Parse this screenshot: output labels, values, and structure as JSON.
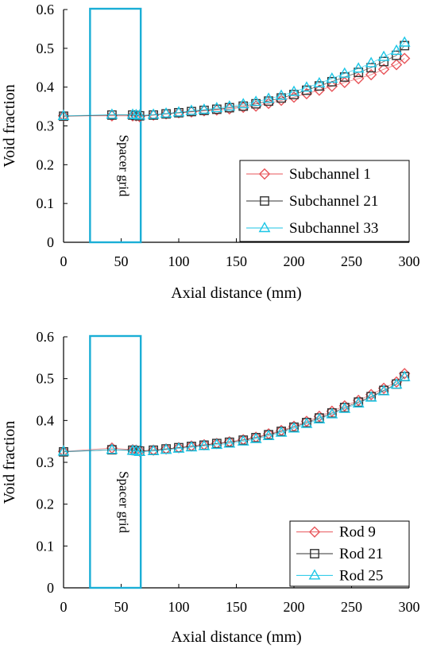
{
  "chart_data": [
    {
      "type": "scatter",
      "xlabel": "Axial distance (mm)",
      "ylabel": "Void fraction",
      "xlim": [
        0,
        300
      ],
      "ylim": [
        0,
        0.6
      ],
      "xticks": [
        "0",
        "50",
        "100",
        "150",
        "200",
        "250",
        "300"
      ],
      "yticks": [
        "0",
        "0.1",
        "0.2",
        "0.3",
        "0.4",
        "0.5",
        "0.6"
      ],
      "annotation": {
        "text": "Spacer grid",
        "x_range": [
          23,
          67
        ],
        "color": "#1aaed6"
      },
      "legend_position": "bottom-right",
      "series": [
        {
          "name": "Subchannel 1",
          "marker": "diamond",
          "color": "#e8555a",
          "x": [
            0,
            42,
            60,
            63,
            66,
            78,
            89,
            100,
            111,
            122,
            133,
            144,
            156,
            167,
            178,
            189,
            200,
            211,
            222,
            233,
            244,
            256,
            267,
            278,
            289,
            296
          ],
          "y": [
            0.326,
            0.326,
            0.326,
            0.326,
            0.324,
            0.328,
            0.331,
            0.334,
            0.336,
            0.339,
            0.341,
            0.344,
            0.348,
            0.351,
            0.358,
            0.366,
            0.374,
            0.383,
            0.392,
            0.402,
            0.412,
            0.422,
            0.432,
            0.446,
            0.458,
            0.474
          ]
        },
        {
          "name": "Subchannel 21",
          "marker": "square",
          "color": "#333333",
          "x": [
            0,
            42,
            60,
            63,
            66,
            78,
            89,
            100,
            111,
            122,
            133,
            144,
            156,
            167,
            178,
            189,
            200,
            211,
            222,
            233,
            244,
            256,
            267,
            278,
            289,
            296
          ],
          "y": [
            0.325,
            0.328,
            0.328,
            0.327,
            0.326,
            0.328,
            0.331,
            0.334,
            0.337,
            0.34,
            0.343,
            0.347,
            0.351,
            0.357,
            0.364,
            0.372,
            0.381,
            0.392,
            0.403,
            0.414,
            0.426,
            0.438,
            0.45,
            0.466,
            0.482,
            0.507
          ]
        },
        {
          "name": "Subchannel 33",
          "marker": "triangle",
          "color": "#1cc6e6",
          "x": [
            0,
            42,
            60,
            63,
            66,
            78,
            89,
            100,
            111,
            122,
            133,
            144,
            156,
            167,
            178,
            189,
            200,
            211,
            222,
            233,
            244,
            256,
            267,
            278,
            289,
            296
          ],
          "y": [
            0.326,
            0.329,
            0.329,
            0.328,
            0.327,
            0.329,
            0.332,
            0.335,
            0.339,
            0.342,
            0.346,
            0.35,
            0.356,
            0.362,
            0.37,
            0.378,
            0.388,
            0.399,
            0.41,
            0.422,
            0.435,
            0.448,
            0.462,
            0.478,
            0.494,
            0.515
          ]
        }
      ]
    },
    {
      "type": "scatter",
      "xlabel": "Axial distance (mm)",
      "ylabel": "Void fraction",
      "xlim": [
        0,
        300
      ],
      "ylim": [
        0,
        0.6
      ],
      "xticks": [
        "0",
        "50",
        "100",
        "150",
        "200",
        "250",
        "300"
      ],
      "yticks": [
        "0",
        "0.1",
        "0.2",
        "0.3",
        "0.4",
        "0.5",
        "0.6"
      ],
      "annotation": {
        "text": "Spacer grid",
        "x_range": [
          23,
          67
        ],
        "color": "#1aaed6"
      },
      "legend_position": "bottom-right",
      "series": [
        {
          "name": "Rod 9",
          "marker": "diamond",
          "color": "#e8555a",
          "x": [
            0,
            42,
            60,
            63,
            66,
            78,
            89,
            100,
            111,
            122,
            133,
            144,
            156,
            167,
            178,
            189,
            200,
            211,
            222,
            233,
            244,
            256,
            267,
            278,
            289,
            296
          ],
          "y": [
            0.326,
            0.334,
            0.33,
            0.329,
            0.327,
            0.329,
            0.332,
            0.335,
            0.339,
            0.342,
            0.345,
            0.349,
            0.354,
            0.36,
            0.368,
            0.376,
            0.386,
            0.398,
            0.41,
            0.422,
            0.435,
            0.448,
            0.462,
            0.477,
            0.492,
            0.512
          ]
        },
        {
          "name": "Rod 21",
          "marker": "square",
          "color": "#333333",
          "x": [
            0,
            42,
            60,
            63,
            66,
            78,
            89,
            100,
            111,
            122,
            133,
            144,
            156,
            167,
            178,
            189,
            200,
            211,
            222,
            233,
            244,
            256,
            267,
            278,
            289,
            296
          ],
          "y": [
            0.325,
            0.33,
            0.329,
            0.328,
            0.327,
            0.329,
            0.332,
            0.335,
            0.338,
            0.341,
            0.345,
            0.348,
            0.353,
            0.359,
            0.366,
            0.374,
            0.384,
            0.395,
            0.406,
            0.418,
            0.431,
            0.444,
            0.457,
            0.472,
            0.487,
            0.505
          ]
        },
        {
          "name": "Rod 25",
          "marker": "triangle",
          "color": "#1cc6e6",
          "x": [
            0,
            42,
            60,
            63,
            66,
            78,
            89,
            100,
            111,
            122,
            133,
            144,
            156,
            167,
            178,
            189,
            200,
            211,
            222,
            233,
            244,
            256,
            267,
            278,
            289,
            296
          ],
          "y": [
            0.326,
            0.33,
            0.328,
            0.327,
            0.325,
            0.327,
            0.33,
            0.333,
            0.336,
            0.339,
            0.342,
            0.345,
            0.35,
            0.356,
            0.363,
            0.371,
            0.381,
            0.392,
            0.403,
            0.415,
            0.428,
            0.441,
            0.455,
            0.47,
            0.486,
            0.504
          ]
        }
      ]
    }
  ]
}
